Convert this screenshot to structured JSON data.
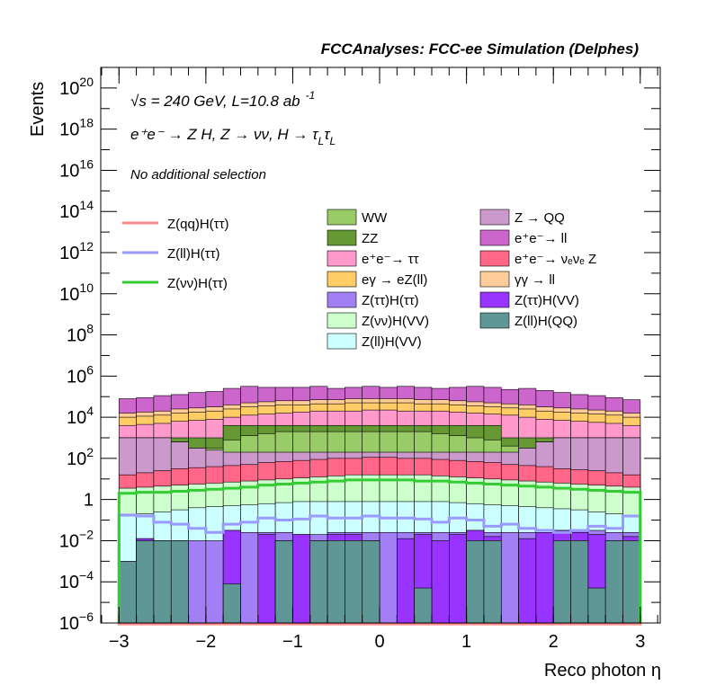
{
  "header": {
    "title": "FCCAnalyses: FCC-ee Simulation (Delphes)",
    "line1_sqrt": "√s",
    "line1_rest": " = 240 GeV, L=10.8 ab",
    "line1_exp": "-1",
    "line2": "e⁺e⁻ → Z H, Z  → νν, H → τ",
    "line2_sub1": "L",
    "line2_tau": "τ",
    "line2_sub2": "L",
    "line3": "No additional selection"
  },
  "chart_data": {
    "type": "histogram",
    "xlabel": "Reco photon η",
    "ylabel": "Events",
    "xlim": [
      -3,
      3
    ],
    "ylim": [
      1e-06,
      1e+21
    ],
    "yscale": "log",
    "x_ticks": [
      -3,
      -2,
      -1,
      0,
      1,
      2,
      3
    ],
    "x_tick_labels": [
      "−3",
      "−2",
      "−1",
      "0",
      "1",
      "2",
      "3"
    ],
    "y_ticks": [
      {
        "base": "10",
        "exp": "−6",
        "value": 1e-06
      },
      {
        "base": "10",
        "exp": "−4",
        "value": 0.0001
      },
      {
        "base": "10",
        "exp": "−2",
        "value": 0.01
      },
      {
        "base": "1",
        "exp": "",
        "value": 1
      },
      {
        "base": "10",
        "exp": "2",
        "value": 100.0
      },
      {
        "base": "10",
        "exp": "4",
        "value": 10000.0
      },
      {
        "base": "10",
        "exp": "6",
        "value": 1000000.0
      },
      {
        "base": "10",
        "exp": "8",
        "value": 100000000.0
      },
      {
        "base": "10",
        "exp": "10",
        "value": 10000000000.0
      },
      {
        "base": "10",
        "exp": "12",
        "value": 1000000000000.0
      },
      {
        "base": "10",
        "exp": "14",
        "value": 100000000000000.0
      },
      {
        "base": "10",
        "exp": "16",
        "value": 1e+16
      },
      {
        "base": "10",
        "exp": "18",
        "value": 1e+18
      },
      {
        "base": "10",
        "exp": "20",
        "value": 1e+20
      }
    ],
    "bins": {
      "n": 30,
      "min": -3,
      "max": 3
    },
    "stack_boundaries": [
      {
        "name": "Z(ll)H(QQ)",
        "color": "#5f9696",
        "top": [
          -3.0,
          -2.0,
          -2.0,
          -2.0,
          -6.0,
          -6.0,
          -4.1,
          -6.0,
          -6.0,
          -2.0,
          -6.0,
          -2.0,
          -2.0,
          -2.0,
          -2.0,
          -6.0,
          -6.0,
          -4.3,
          -6.0,
          -6.0,
          -2.0,
          -2.0,
          -6.0,
          -6.0,
          -6.0,
          -2.0,
          -2.0,
          -4.3,
          -2.0,
          -2.0
        ]
      },
      {
        "name": "Z(ττ)H(VV)",
        "color": "#9933ff",
        "top": [
          -3.0,
          -1.9,
          -2.0,
          -2.0,
          -6.0,
          -6.0,
          -1.5,
          -6.0,
          -1.7,
          -2.0,
          -1.7,
          -2.0,
          -1.7,
          -1.7,
          -2.0,
          -6.0,
          -1.9,
          -1.7,
          -2.0,
          -1.7,
          -1.5,
          -1.8,
          -6.0,
          -1.9,
          -1.6,
          -1.5,
          -1.6,
          -1.7,
          -2.0,
          -1.8
        ]
      },
      {
        "name": "Z(ττ)H(ττ)",
        "color": "#a27ff5",
        "top": [
          -3.0,
          -1.9,
          -2.0,
          -2.0,
          -2.0,
          -2.0,
          -1.5,
          -1.6,
          -1.6,
          -1.6,
          -1.7,
          -1.7,
          -1.6,
          -1.6,
          -1.6,
          -1.6,
          -1.6,
          -1.6,
          -1.6,
          -1.6,
          -1.5,
          -1.6,
          -1.6,
          -1.6,
          -1.6,
          -1.5,
          -1.5,
          -1.5,
          -1.6,
          -1.6
        ]
      },
      {
        "name": "Z(ll)H(VV)",
        "color": "#ccffff",
        "top": [
          -0.8,
          -0.7,
          -0.6,
          -0.5,
          -0.4,
          -0.35,
          -0.3,
          -0.25,
          -0.2,
          -0.15,
          -0.1,
          -0.1,
          -0.1,
          -0.1,
          -0.1,
          -0.1,
          -0.1,
          -0.1,
          -0.1,
          -0.15,
          -0.2,
          -0.25,
          -0.3,
          -0.35,
          -0.4,
          -0.45,
          -0.5,
          -0.6,
          -0.7,
          -0.8
        ]
      },
      {
        "name": "Z(νν)H(VV)",
        "color": "#ccffcc",
        "top": [
          0.55,
          0.6,
          0.65,
          0.7,
          0.75,
          0.8,
          0.85,
          0.9,
          0.95,
          1.0,
          1.05,
          1.1,
          1.15,
          1.2,
          1.2,
          1.2,
          1.2,
          1.2,
          1.15,
          1.1,
          1.05,
          1.0,
          0.95,
          0.9,
          0.85,
          0.8,
          0.75,
          0.7,
          0.65,
          0.6
        ]
      },
      {
        "name": "e⁺e⁻ → νₑνₑ Z",
        "color": "#ff6688",
        "top": [
          1.2,
          1.3,
          1.4,
          1.5,
          1.55,
          1.6,
          1.65,
          1.7,
          1.8,
          1.85,
          1.9,
          1.95,
          2.0,
          2.0,
          2.05,
          2.05,
          2.0,
          2.0,
          1.95,
          1.9,
          1.85,
          1.8,
          1.7,
          1.65,
          1.6,
          1.5,
          1.45,
          1.4,
          1.3,
          1.2
        ]
      },
      {
        "name": "Z → QQ",
        "color": "#cc99cc",
        "top": [
          3.0,
          3.0,
          3.0,
          2.8,
          2.5,
          2.4,
          2.3,
          2.3,
          2.3,
          2.3,
          2.3,
          2.3,
          2.3,
          2.3,
          2.3,
          2.3,
          2.3,
          2.3,
          2.3,
          2.3,
          2.3,
          2.3,
          2.3,
          2.5,
          2.8,
          3.0,
          3.0,
          3.0,
          3.0,
          3.0
        ]
      },
      {
        "name": "WW",
        "color": "#99cc66",
        "top": [
          3.0,
          3.0,
          3.0,
          2.8,
          2.5,
          2.5,
          2.9,
          3.1,
          3.2,
          3.3,
          3.3,
          3.3,
          3.3,
          3.3,
          3.3,
          3.3,
          3.3,
          3.3,
          3.2,
          3.1,
          3.0,
          2.9,
          2.6,
          2.5,
          2.8,
          3.0,
          3.0,
          3.0,
          3.0,
          3.0
        ]
      },
      {
        "name": "ZZ",
        "color": "#669933",
        "top": [
          3.0,
          3.0,
          3.0,
          3.0,
          3.0,
          3.0,
          3.6,
          3.6,
          3.6,
          3.6,
          3.6,
          3.6,
          3.6,
          3.6,
          3.6,
          3.6,
          3.6,
          3.6,
          3.6,
          3.6,
          3.6,
          3.6,
          3.0,
          3.0,
          3.0,
          3.0,
          3.0,
          3.0,
          3.0,
          3.0
        ]
      },
      {
        "name": "e⁺e⁻ → ττ",
        "color": "#ff99cc",
        "top": [
          3.6,
          3.65,
          3.7,
          3.8,
          3.85,
          3.9,
          4.0,
          4.1,
          4.15,
          4.2,
          4.25,
          4.3,
          4.3,
          4.3,
          4.35,
          4.35,
          4.3,
          4.3,
          4.3,
          4.25,
          4.2,
          4.15,
          4.1,
          4.0,
          3.9,
          3.85,
          3.8,
          3.75,
          3.7,
          3.6
        ]
      },
      {
        "name": "eγ → eZ(ll)",
        "color": "#ffcc66",
        "top": [
          4.0,
          4.05,
          4.1,
          4.2,
          4.25,
          4.3,
          4.4,
          4.5,
          4.55,
          4.6,
          4.6,
          4.65,
          4.65,
          4.7,
          4.7,
          4.7,
          4.7,
          4.65,
          4.65,
          4.6,
          4.55,
          4.5,
          4.45,
          4.4,
          4.3,
          4.25,
          4.2,
          4.15,
          4.1,
          4.0
        ]
      },
      {
        "name": "γγ → ll",
        "color": "#ffcc99",
        "top": [
          4.2,
          4.25,
          4.3,
          4.4,
          4.45,
          4.5,
          4.6,
          4.7,
          4.75,
          4.8,
          4.8,
          4.85,
          4.85,
          4.9,
          4.9,
          4.9,
          4.9,
          4.85,
          4.85,
          4.8,
          4.75,
          4.7,
          4.65,
          4.6,
          4.5,
          4.45,
          4.4,
          4.35,
          4.3,
          4.2
        ]
      },
      {
        "name": "e⁺e⁻ → ll",
        "color": "#cc66cc",
        "top": [
          4.9,
          4.95,
          5.05,
          5.1,
          5.2,
          5.25,
          5.4,
          5.5,
          5.45,
          5.45,
          5.45,
          5.5,
          5.4,
          5.45,
          5.5,
          5.45,
          5.5,
          5.45,
          5.4,
          5.45,
          5.5,
          5.45,
          5.35,
          5.4,
          5.3,
          5.2,
          5.1,
          5.05,
          4.95,
          4.85
        ]
      }
    ],
    "lines": [
      {
        "name": "Z(qq)H(ττ)",
        "color": "#ff8888",
        "values": [
          -6.05,
          -6.05,
          -6.05,
          -6.05,
          -6.05,
          -6.05,
          -6.05,
          -6.05,
          -6.05,
          -6.05,
          -6.05,
          -6.05,
          -6.05,
          -6.05,
          -6.05,
          -6.05,
          -6.05,
          -6.05,
          -6.05,
          -6.05,
          -6.05,
          -6.05,
          -6.05,
          -6.05,
          -6.05,
          -6.05,
          -6.05,
          -6.05,
          -6.05,
          -6.05
        ]
      },
      {
        "name": "Z(ll)H(ττ)",
        "color": "#9999ff",
        "values": [
          -0.75,
          -0.8,
          -1.1,
          -1.2,
          -1.4,
          -1.6,
          -1.2,
          -1.1,
          -0.9,
          -1.0,
          -0.95,
          -0.8,
          -0.9,
          -0.9,
          -0.8,
          -0.9,
          -0.9,
          -0.95,
          -1.1,
          -0.9,
          -1.0,
          -1.3,
          -1.2,
          -1.4,
          -1.5,
          -1.6,
          -1.5,
          -1.3,
          -1.4,
          -0.8
        ]
      },
      {
        "name": "Z(νν)H(ττ)",
        "color": "#33cc33",
        "values": [
          0.3,
          0.35,
          0.35,
          0.4,
          0.45,
          0.5,
          0.55,
          0.6,
          0.7,
          0.75,
          0.8,
          0.85,
          0.9,
          0.95,
          0.95,
          0.95,
          0.95,
          0.9,
          0.9,
          0.85,
          0.8,
          0.75,
          0.7,
          0.65,
          0.6,
          0.55,
          0.5,
          0.45,
          0.4,
          0.35
        ]
      }
    ],
    "legend_lines": [
      "Z(qq)H(ττ)",
      "Z(ll)H(ττ)",
      "Z(νν)H(ττ)"
    ],
    "legend_col1": [
      {
        "label": "WW",
        "color": "#99cc66"
      },
      {
        "label": "ZZ",
        "color": "#669933"
      },
      {
        "label": "e⁺e⁻→ ττ",
        "color": "#ff99cc"
      },
      {
        "label": "eγ → eZ(ll)",
        "color": "#ffcc66"
      },
      {
        "label": "Z(ττ)H(ττ)",
        "color": "#a27ff5"
      },
      {
        "label": "Z(νν)H(VV)",
        "color": "#ccffcc"
      },
      {
        "label": "Z(ll)H(VV)",
        "color": "#ccffff"
      }
    ],
    "legend_col2": [
      {
        "label": "Z → QQ",
        "color": "#cc99cc"
      },
      {
        "label": "e⁺e⁻→ ll",
        "color": "#cc66cc"
      },
      {
        "label": "e⁺e⁻→ νₑνₑ Z",
        "color": "#ff6688"
      },
      {
        "label": "γγ → ll",
        "color": "#ffcc99"
      },
      {
        "label": "Z(ττ)H(VV)",
        "color": "#9933ff"
      },
      {
        "label": "Z(ll)H(QQ)",
        "color": "#5f9696"
      }
    ]
  }
}
